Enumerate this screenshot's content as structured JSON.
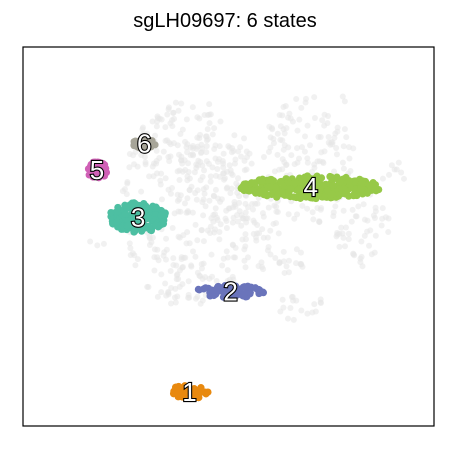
{
  "title": "sgLH09697: 6 states",
  "chart_data": {
    "type": "scatter",
    "title": "sgLH09697: 6 states",
    "xlabel": "",
    "ylabel": "",
    "grid": false,
    "axes_ticks": false,
    "xlim": [
      0,
      100
    ],
    "ylim": [
      0,
      100
    ],
    "background_color": "#e6e6e6",
    "states": [
      {
        "label": "1",
        "color": "#e8890f",
        "center": [
          40.5,
          9.0
        ],
        "spread": [
          5.0,
          1.8
        ]
      },
      {
        "label": "2",
        "color": "#6a74bb",
        "center": [
          50.5,
          35.5
        ],
        "spread": [
          8.5,
          1.6
        ]
      },
      {
        "label": "3",
        "color": "#4dbfa2",
        "center": [
          28.0,
          55.0
        ],
        "spread": [
          7.0,
          4.0
        ]
      },
      {
        "label": "4",
        "color": "#97c948",
        "center": [
          70.0,
          63.0
        ],
        "spread": [
          17.0,
          3.0
        ]
      },
      {
        "label": "5",
        "color": "#d060b6",
        "center": [
          18.0,
          67.5
        ],
        "spread": [
          2.5,
          2.3
        ]
      },
      {
        "label": "6",
        "color": "#a7a598",
        "center": [
          29.5,
          74.5
        ],
        "spread": [
          2.8,
          1.2
        ]
      }
    ]
  }
}
